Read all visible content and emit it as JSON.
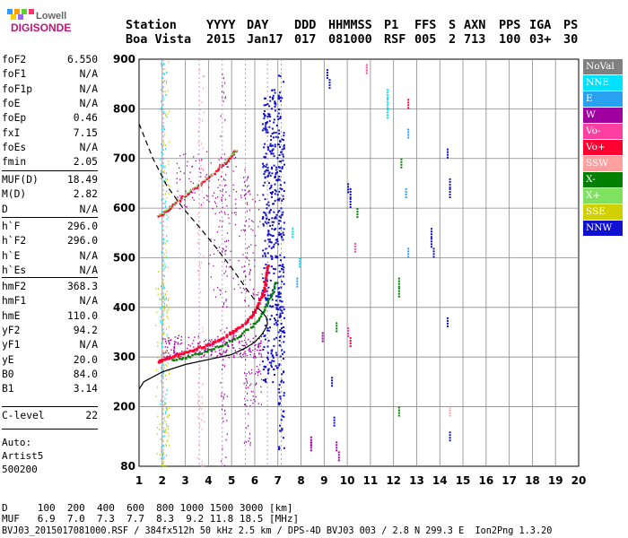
{
  "logo": {
    "brand": "Lowell",
    "product": "DIGISONDE"
  },
  "header": {
    "row1": [
      "Station",
      "YYYY",
      "DAY",
      "DDD",
      "HHMMSS",
      "P1",
      "FFS",
      "S",
      "AXN",
      "PPS",
      "IGA",
      "PS"
    ],
    "row2": [
      "Boa Vista",
      "2015",
      "Jan17",
      "017",
      "081000",
      "RSF",
      "005",
      "2",
      "713",
      "100",
      "03+",
      "30"
    ]
  },
  "params": {
    "group1": [
      {
        "k": "foF2",
        "v": "6.550"
      },
      {
        "k": "foF1",
        "v": "N/A"
      },
      {
        "k": "foF1p",
        "v": "N/A"
      },
      {
        "k": "foE",
        "v": "N/A"
      },
      {
        "k": "foEp",
        "v": "0.46"
      },
      {
        "k": "fxI",
        "v": "7.15"
      },
      {
        "k": "foEs",
        "v": "N/A"
      },
      {
        "k": "fmin",
        "v": "2.05"
      }
    ],
    "group2": [
      {
        "k": "MUF(D)",
        "v": "18.49"
      },
      {
        "k": "M(D)",
        "v": "2.82"
      },
      {
        "k": "D",
        "v": "N/A"
      }
    ],
    "group3": [
      {
        "k": "h`F",
        "v": "296.0"
      },
      {
        "k": "h`F2",
        "v": "296.0"
      },
      {
        "k": "h`E",
        "v": "N/A"
      },
      {
        "k": "h`Es",
        "v": "N/A"
      }
    ],
    "group4": [
      {
        "k": "hmF2",
        "v": "368.3"
      },
      {
        "k": "hmF1",
        "v": "N/A"
      },
      {
        "k": "hmE",
        "v": "110.0"
      },
      {
        "k": "yF2",
        "v": "94.2"
      },
      {
        "k": "yF1",
        "v": "N/A"
      },
      {
        "k": "yE",
        "v": "20.0"
      },
      {
        "k": "B0",
        "v": "84.0"
      },
      {
        "k": "B1",
        "v": "3.14"
      }
    ],
    "group5": [
      {
        "k": "C-level",
        "v": "22"
      }
    ]
  },
  "auto": {
    "line1": "Auto:",
    "line2": "Artist5",
    "line3": "500200"
  },
  "footer": {
    "d_row": "D     100  200  400  600  800 1000 1500 3000 [km]",
    "muf_row": "MUF   6.9  7.0  7.3  7.7  8.3  9.2 11.8 18.5 [MHz]",
    "file_row": "BVJ03_2015017081000.RSF / 384fx512h 50 kHz 2.5 km / DPS-4D BVJ03 003 / 2.8 N 299.3 E  Ion2Png 1.3.20"
  },
  "legend": [
    {
      "label": "NoVal",
      "color": "#808080"
    },
    {
      "label": "NNE",
      "color": "#00e0ff"
    },
    {
      "label": "E",
      "color": "#2aa0f0"
    },
    {
      "label": "W",
      "color": "#a000a0"
    },
    {
      "label": "Vo-",
      "color": "#ff40a0"
    },
    {
      "label": "Vo+",
      "color": "#ff0030"
    },
    {
      "label": "SSW",
      "color": "#ffa0a0"
    },
    {
      "label": "X-",
      "color": "#008000"
    },
    {
      "label": "X+",
      "color": "#80e060"
    },
    {
      "label": "SSE",
      "color": "#d0d000"
    },
    {
      "label": "NNW",
      "color": "#1010d0"
    }
  ],
  "chart_data": {
    "type": "scatter",
    "xlim": [
      1,
      20
    ],
    "ylim": [
      80,
      900
    ],
    "x_ticks": [
      "1",
      "2",
      "3",
      "4",
      "5",
      "6",
      "7",
      "8",
      "9",
      "10",
      "11",
      "12",
      "13",
      "14",
      "15",
      "16",
      "17",
      "18",
      "19",
      "20"
    ],
    "y_ticks": [
      "80",
      "200",
      "300",
      "400",
      "500",
      "600",
      "700",
      "800",
      "900"
    ],
    "xlabel": "",
    "ylabel": "",
    "grid": true,
    "dotted_vlines": [
      2.05,
      3.6,
      4.6,
      5.6,
      6.55,
      7.15
    ],
    "traces": {
      "o_trace_F2": {
        "x": [
          1.8,
          2.0,
          2.3,
          2.7,
          3.2,
          3.8,
          4.3,
          4.8,
          5.2,
          5.6,
          5.9,
          6.1,
          6.3,
          6.4,
          6.5,
          6.55
        ],
        "y": [
          292,
          295,
          300,
          306,
          314,
          323,
          333,
          345,
          357,
          372,
          388,
          405,
          425,
          445,
          470,
          490
        ]
      },
      "x_trace_F2": {
        "x": [
          2.4,
          3.0,
          3.6,
          4.2,
          4.8,
          5.3,
          5.8,
          6.2,
          6.5,
          6.75,
          6.9
        ],
        "y": [
          296,
          300,
          308,
          318,
          330,
          343,
          360,
          380,
          405,
          430,
          455
        ]
      },
      "o_trace_2F2": {
        "x": [
          1.85,
          2.1,
          2.4,
          2.8,
          3.3,
          3.8,
          4.3,
          4.7,
          5.0,
          5.2
        ],
        "y": [
          585,
          592,
          605,
          620,
          638,
          655,
          675,
          692,
          708,
          718
        ]
      },
      "profile": {
        "x": [
          0.7,
          1.2,
          2.0,
          3.0,
          4.0,
          5.0,
          5.6,
          6.0,
          6.3,
          6.5,
          6.55,
          6.5,
          6.3,
          6.1
        ],
        "y": [
          235,
          250,
          270,
          285,
          295,
          305,
          318,
          330,
          345,
          360,
          368,
          380,
          392,
          400
        ]
      },
      "dashed_muf": {
        "x": [
          1.0,
          1.6,
          2.2,
          2.9,
          3.6,
          4.3,
          5.0,
          5.6,
          6.0
        ],
        "y": [
          770,
          700,
          645,
          600,
          562,
          522,
          480,
          440,
          415
        ]
      }
    }
  }
}
